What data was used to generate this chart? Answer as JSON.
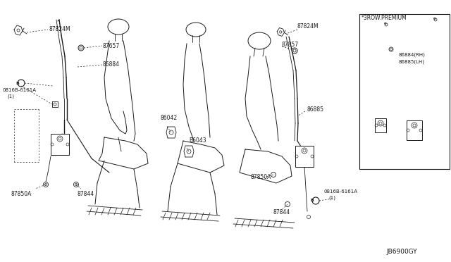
{
  "background_color": "#ffffff",
  "line_color": "#1a1a1a",
  "text_color": "#1a1a1a",
  "figsize": [
    6.4,
    3.72
  ],
  "dpi": 100,
  "diagram_code": "JB6900GY",
  "note_3row": "*3ROW.PREMIUM",
  "parts": {
    "87824M_L": "87824M",
    "87657_L": "87657",
    "86884_L": "86884",
    "bolt_L": "B0816B-6161A\n  (1)",
    "87850A_L": "87850A",
    "87844_L": "87844",
    "86842": "86042",
    "86843": "B6043",
    "87824M_R": "87824M",
    "87657_R": "87857",
    "86885": "86885",
    "87850A_R": "87850A",
    "87844_R": "87844",
    "bolt_R": "B0816B-6161A\n    (1)",
    "86884_RH": "86884(RH)",
    "86885_LH": "86885(LH)"
  }
}
